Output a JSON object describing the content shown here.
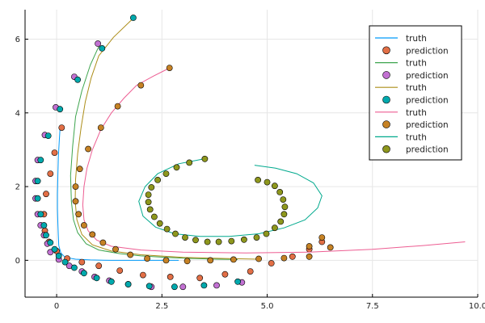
{
  "chart_data": {
    "type": "line+scatter",
    "title": "",
    "xlabel": "",
    "ylabel": "",
    "xlim": [
      -0.75,
      10.0
    ],
    "ylim": [
      -1.0,
      6.8
    ],
    "grid": true,
    "legend_position": "top-right",
    "x_ticks": [
      {
        "value": 0,
        "label": "0"
      },
      {
        "value": 2.5,
        "label": "2.5"
      },
      {
        "value": 5,
        "label": "5.0"
      },
      {
        "value": 7.5,
        "label": "7.5"
      },
      {
        "value": 10,
        "label": "10.0"
      }
    ],
    "y_ticks": [
      {
        "value": 0,
        "label": "0"
      },
      {
        "value": 2,
        "label": "2"
      },
      {
        "value": 4,
        "label": "4"
      },
      {
        "value": 6,
        "label": "6"
      }
    ],
    "series": [
      {
        "name": "truth",
        "kind": "line",
        "color": "#009AFA",
        "points": [
          [
            0.08,
            3.55
          ],
          [
            0.06,
            3.2
          ],
          [
            0.04,
            2.8
          ],
          [
            0.03,
            2.3
          ],
          [
            0.02,
            1.8
          ],
          [
            0.02,
            1.4
          ],
          [
            0.03,
            1.0
          ],
          [
            0.04,
            0.65
          ],
          [
            0.05,
            0.4
          ],
          [
            0.1,
            0.2
          ],
          [
            0.2,
            0.08
          ],
          [
            0.45,
            0.03
          ],
          [
            0.8,
            0.01
          ],
          [
            1.3,
            0.0
          ],
          [
            2.0,
            0.0
          ],
          [
            2.9,
            0.0
          ]
        ]
      },
      {
        "name": "prediction",
        "kind": "scatter",
        "color": "#E26F46",
        "points": [
          [
            0.12,
            3.6
          ],
          [
            -0.05,
            2.92
          ],
          [
            -0.15,
            2.35
          ],
          [
            -0.25,
            1.8
          ],
          [
            -0.3,
            1.25
          ],
          [
            -0.28,
            0.8
          ],
          [
            -0.18,
            0.5
          ],
          [
            0.0,
            0.25
          ],
          [
            0.25,
            0.05
          ],
          [
            0.6,
            -0.05
          ],
          [
            1.0,
            -0.15
          ],
          [
            1.5,
            -0.28
          ],
          [
            2.05,
            -0.4
          ],
          [
            2.7,
            -0.45
          ],
          [
            3.4,
            -0.48
          ],
          [
            4.0,
            -0.38
          ],
          [
            4.6,
            -0.3
          ],
          [
            5.1,
            -0.08
          ],
          [
            5.6,
            0.1
          ],
          [
            6.0,
            0.3
          ],
          [
            6.3,
            0.5
          ]
        ]
      },
      {
        "name": "truth",
        "kind": "line",
        "color": "#3DA44D",
        "points": [
          [
            1.0,
            5.8
          ],
          [
            0.8,
            5.3
          ],
          [
            0.6,
            4.6
          ],
          [
            0.45,
            3.9
          ],
          [
            0.38,
            3.1
          ],
          [
            0.33,
            2.3
          ],
          [
            0.35,
            1.6
          ],
          [
            0.4,
            1.1
          ],
          [
            0.5,
            0.75
          ],
          [
            0.7,
            0.45
          ],
          [
            1.0,
            0.28
          ],
          [
            1.5,
            0.18
          ],
          [
            2.0,
            0.12
          ],
          [
            2.6,
            0.08
          ],
          [
            3.2,
            0.05
          ],
          [
            3.8,
            0.03
          ],
          [
            4.3,
            0.02
          ]
        ]
      },
      {
        "name": "prediction",
        "kind": "scatter",
        "color": "#C271D2",
        "points": [
          [
            0.98,
            5.88
          ],
          [
            0.42,
            4.98
          ],
          [
            -0.02,
            4.15
          ],
          [
            -0.28,
            3.4
          ],
          [
            -0.45,
            2.72
          ],
          [
            -0.5,
            2.15
          ],
          [
            -0.5,
            1.68
          ],
          [
            -0.45,
            1.25
          ],
          [
            -0.38,
            0.95
          ],
          [
            -0.3,
            0.68
          ],
          [
            -0.22,
            0.45
          ],
          [
            -0.15,
            0.22
          ],
          [
            0.05,
            0.02
          ],
          [
            0.3,
            -0.15
          ],
          [
            0.6,
            -0.3
          ],
          [
            0.9,
            -0.45
          ],
          [
            1.25,
            -0.55
          ],
          [
            1.7,
            -0.65
          ],
          [
            2.25,
            -0.72
          ],
          [
            3.0,
            -0.72
          ],
          [
            3.8,
            -0.68
          ],
          [
            4.4,
            -0.6
          ]
        ]
      },
      {
        "name": "truth",
        "kind": "line",
        "color": "#AC8D18",
        "points": [
          [
            1.85,
            6.6
          ],
          [
            1.35,
            6.05
          ],
          [
            1.0,
            5.55
          ],
          [
            0.82,
            4.95
          ],
          [
            0.68,
            4.3
          ],
          [
            0.58,
            3.6
          ],
          [
            0.5,
            2.9
          ],
          [
            0.45,
            2.2
          ],
          [
            0.44,
            1.6
          ],
          [
            0.48,
            1.1
          ],
          [
            0.6,
            0.7
          ],
          [
            0.85,
            0.42
          ],
          [
            1.3,
            0.25
          ],
          [
            2.0,
            0.15
          ],
          [
            3.0,
            0.08
          ],
          [
            4.0,
            0.05
          ],
          [
            4.8,
            0.03
          ]
        ]
      },
      {
        "name": "prediction",
        "kind": "scatter",
        "color": "#00A9AD",
        "points": [
          [
            1.82,
            6.58
          ],
          [
            1.08,
            5.75
          ],
          [
            0.5,
            4.9
          ],
          [
            0.08,
            4.1
          ],
          [
            -0.2,
            3.38
          ],
          [
            -0.38,
            2.72
          ],
          [
            -0.45,
            2.15
          ],
          [
            -0.45,
            1.68
          ],
          [
            -0.38,
            1.25
          ],
          [
            -0.3,
            0.95
          ],
          [
            -0.25,
            0.68
          ],
          [
            -0.15,
            0.48
          ],
          [
            -0.05,
            0.3
          ],
          [
            0.05,
            0.12
          ],
          [
            0.2,
            -0.05
          ],
          [
            0.42,
            -0.2
          ],
          [
            0.65,
            -0.35
          ],
          [
            0.95,
            -0.48
          ],
          [
            1.3,
            -0.58
          ],
          [
            1.7,
            -0.65
          ],
          [
            2.2,
            -0.7
          ],
          [
            2.8,
            -0.72
          ],
          [
            3.5,
            -0.68
          ],
          [
            4.3,
            -0.58
          ]
        ]
      },
      {
        "name": "truth",
        "kind": "line",
        "color": "#ED5D92",
        "points": [
          [
            2.65,
            5.2
          ],
          [
            2.3,
            5.0
          ],
          [
            1.9,
            4.75
          ],
          [
            1.6,
            4.4
          ],
          [
            1.3,
            4.0
          ],
          [
            1.05,
            3.55
          ],
          [
            0.85,
            3.0
          ],
          [
            0.72,
            2.5
          ],
          [
            0.65,
            2.0
          ],
          [
            0.62,
            1.5
          ],
          [
            0.65,
            1.1
          ],
          [
            0.75,
            0.8
          ],
          [
            0.95,
            0.55
          ],
          [
            1.3,
            0.38
          ],
          [
            2.0,
            0.28
          ],
          [
            3.0,
            0.22
          ],
          [
            4.5,
            0.2
          ],
          [
            6.0,
            0.22
          ],
          [
            7.5,
            0.3
          ],
          [
            8.7,
            0.4
          ],
          [
            9.7,
            0.5
          ]
        ]
      },
      {
        "name": "prediction",
        "kind": "scatter",
        "color": "#C68225",
        "points": [
          [
            2.68,
            5.22
          ],
          [
            2.0,
            4.75
          ],
          [
            1.45,
            4.18
          ],
          [
            1.05,
            3.6
          ],
          [
            0.75,
            3.02
          ],
          [
            0.55,
            2.48
          ],
          [
            0.45,
            2.0
          ],
          [
            0.45,
            1.6
          ],
          [
            0.52,
            1.25
          ],
          [
            0.65,
            0.95
          ],
          [
            0.85,
            0.7
          ],
          [
            1.1,
            0.48
          ],
          [
            1.4,
            0.3
          ],
          [
            1.75,
            0.15
          ],
          [
            2.15,
            0.05
          ],
          [
            2.6,
            0.0
          ],
          [
            3.1,
            -0.02
          ],
          [
            3.65,
            0.0
          ],
          [
            4.2,
            0.02
          ],
          [
            4.8,
            0.04
          ],
          [
            5.4,
            0.06
          ],
          [
            6.0,
            0.1
          ],
          [
            6.5,
            0.35
          ],
          [
            6.3,
            0.62
          ],
          [
            6.0,
            0.38
          ]
        ]
      },
      {
        "name": "truth",
        "kind": "line",
        "color": "#00A98D",
        "points": [
          [
            3.5,
            2.75
          ],
          [
            2.9,
            2.62
          ],
          [
            2.4,
            2.35
          ],
          [
            2.1,
            2.0
          ],
          [
            1.95,
            1.6
          ],
          [
            2.05,
            1.2
          ],
          [
            2.35,
            0.9
          ],
          [
            2.8,
            0.72
          ],
          [
            3.4,
            0.65
          ],
          [
            4.1,
            0.65
          ],
          [
            4.8,
            0.72
          ],
          [
            5.4,
            0.88
          ],
          [
            5.9,
            1.1
          ],
          [
            6.2,
            1.42
          ],
          [
            6.3,
            1.75
          ],
          [
            6.1,
            2.1
          ],
          [
            5.7,
            2.35
          ],
          [
            5.2,
            2.5
          ],
          [
            4.7,
            2.58
          ]
        ]
      },
      {
        "name": "prediction",
        "kind": "scatter",
        "color": "#8E971D",
        "points": [
          [
            3.52,
            2.75
          ],
          [
            3.15,
            2.65
          ],
          [
            2.85,
            2.52
          ],
          [
            2.6,
            2.35
          ],
          [
            2.4,
            2.18
          ],
          [
            2.25,
            1.98
          ],
          [
            2.18,
            1.78
          ],
          [
            2.18,
            1.58
          ],
          [
            2.22,
            1.38
          ],
          [
            2.32,
            1.18
          ],
          [
            2.45,
            1.0
          ],
          [
            2.62,
            0.85
          ],
          [
            2.82,
            0.72
          ],
          [
            3.05,
            0.62
          ],
          [
            3.3,
            0.55
          ],
          [
            3.58,
            0.5
          ],
          [
            3.85,
            0.5
          ],
          [
            4.15,
            0.52
          ],
          [
            4.45,
            0.56
          ],
          [
            4.75,
            0.62
          ],
          [
            4.98,
            0.72
          ],
          [
            5.18,
            0.88
          ],
          [
            5.32,
            1.05
          ],
          [
            5.4,
            1.25
          ],
          [
            5.42,
            1.45
          ],
          [
            5.38,
            1.65
          ],
          [
            5.3,
            1.85
          ],
          [
            5.18,
            2.02
          ],
          [
            5.0,
            2.12
          ],
          [
            4.78,
            2.18
          ]
        ]
      }
    ]
  }
}
